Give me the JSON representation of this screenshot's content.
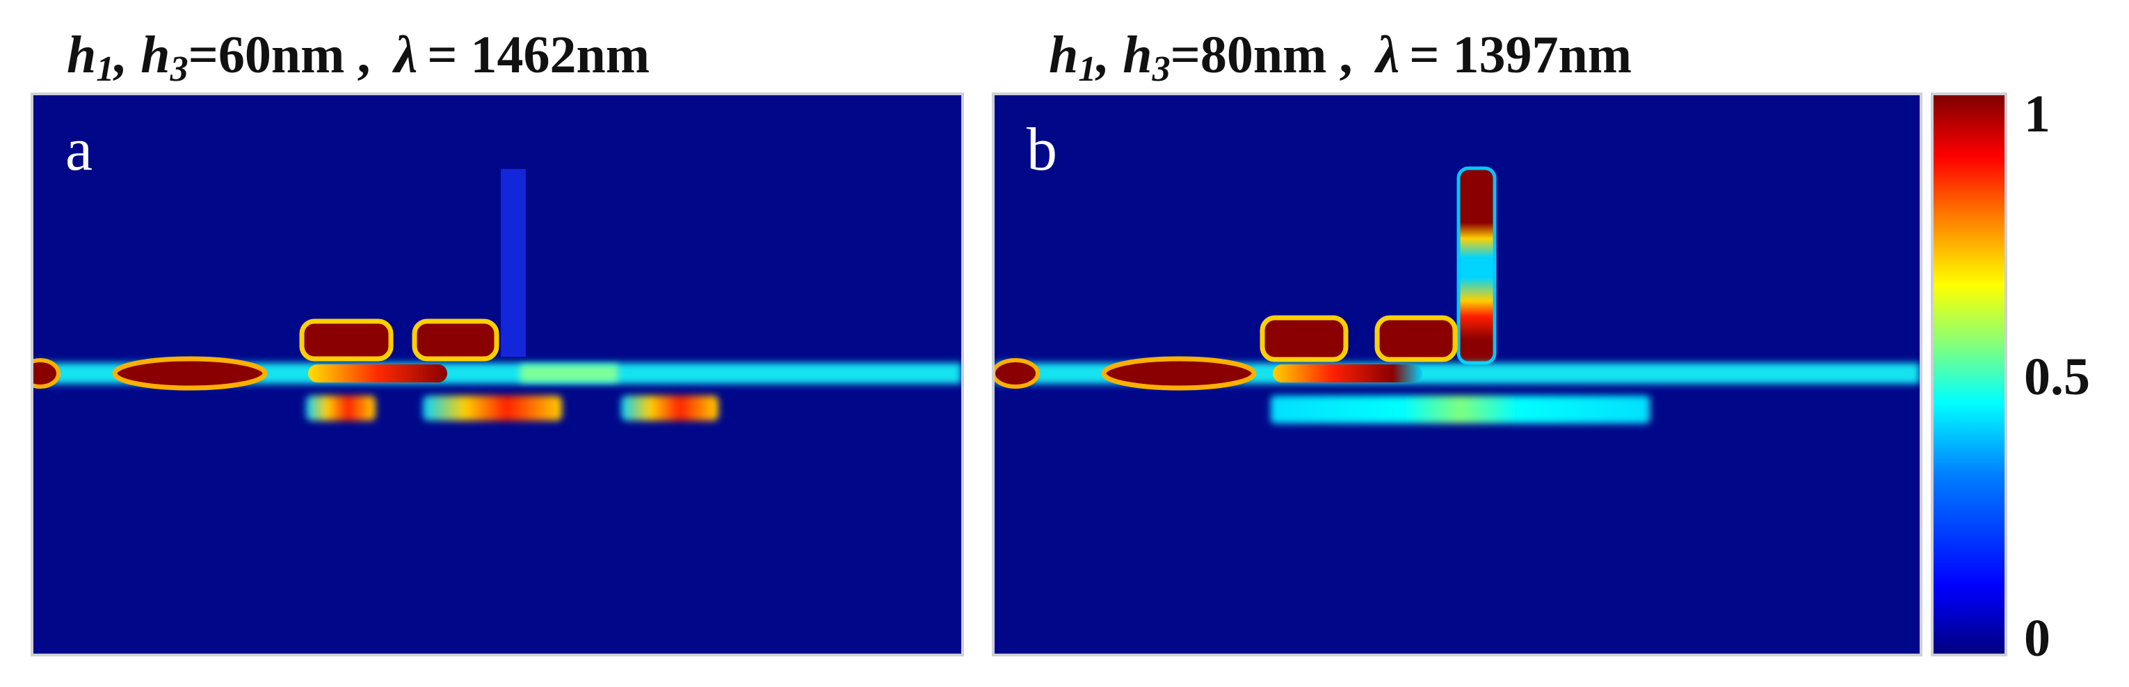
{
  "panels": [
    {
      "label": "a",
      "title": {
        "h_symbols": "h1, h3",
        "h_value": "=60nm",
        "sep": ",",
        "lambda_symbol": "λ",
        "lambda_value": "= 1462nm"
      }
    },
    {
      "label": "b",
      "title": {
        "h_symbols": "h1, h3",
        "h_value": "=80nm",
        "sep": ",",
        "lambda_symbol": "λ",
        "lambda_value": "= 1397nm"
      }
    }
  ],
  "colorbar": {
    "ticks": [
      "1",
      "0.5",
      "0"
    ],
    "colors": [
      "#00007f",
      "#0000ff",
      "#007fff",
      "#00ffff",
      "#7fff7f",
      "#ffff00",
      "#ff7f00",
      "#ff0000",
      "#7f0000"
    ]
  }
}
